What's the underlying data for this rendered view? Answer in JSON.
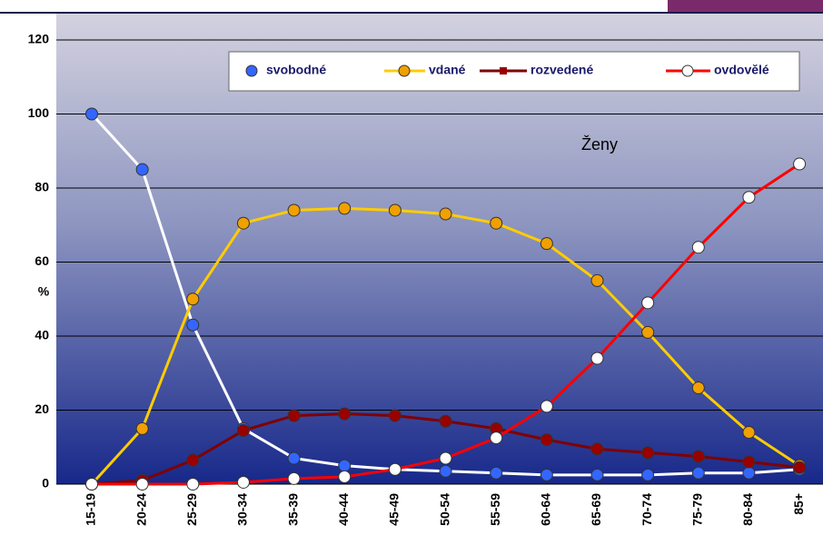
{
  "chart_data": {
    "type": "line",
    "annotation": "Ženy",
    "y_label": "%",
    "categories": [
      "15-19",
      "20-24",
      "25-29",
      "30-34",
      "35-39",
      "40-44",
      "45-49",
      "50-54",
      "55-59",
      "60-64",
      "65-69",
      "70-74",
      "75-79",
      "80-84",
      "85+"
    ],
    "series": [
      {
        "name": "svobodné",
        "color": "#ffffff",
        "marker_color": "#3366ff",
        "values": [
          100,
          85,
          43,
          15,
          7,
          5,
          4,
          3.5,
          3,
          2.5,
          2.5,
          2.5,
          3,
          3,
          4
        ]
      },
      {
        "name": "vdané",
        "color": "#ffcc00",
        "marker_color": "#f0a000",
        "values": [
          0,
          15,
          50,
          70.5,
          74,
          74.5,
          74,
          73,
          70.5,
          65,
          55,
          41,
          26,
          14,
          5
        ]
      },
      {
        "name": "rozvedené",
        "color": "#800000",
        "marker_color": "#990000",
        "values": [
          0,
          1,
          6.5,
          14.5,
          18.5,
          19,
          18.5,
          17,
          15,
          12,
          9.5,
          8.5,
          7.5,
          6,
          4.5
        ]
      },
      {
        "name": "ovdovělé",
        "color": "#ff0000",
        "marker_color": "#ffffff",
        "values": [
          0,
          0,
          0,
          0.5,
          1.5,
          2,
          4,
          7,
          12.5,
          21,
          34,
          49,
          64,
          77.5,
          86.5
        ]
      }
    ],
    "ylim": [
      0,
      120
    ],
    "yticks": [
      0,
      20,
      40,
      60,
      80,
      100,
      120
    ],
    "grid": true
  }
}
